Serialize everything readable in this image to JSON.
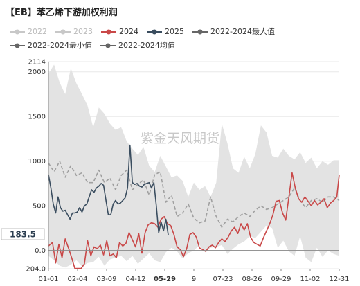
{
  "title": "【EB】苯乙烯下游加权利润",
  "watermark": "紫金天风期货",
  "colors": {
    "band": "#e3e3e3",
    "s2024": "#c94848",
    "s2025": "#3a4d5f",
    "avg": "#a0a0a0",
    "legend_off": "#c8c8c8",
    "legend_grey": "#666666",
    "grid": "#e8e8e8"
  },
  "legend": [
    {
      "label": "2022",
      "color": "#c8c8c8",
      "enabled": false
    },
    {
      "label": "2023",
      "color": "#c8c8c8",
      "enabled": false
    },
    {
      "label": "2024",
      "color": "#c94848",
      "enabled": true
    },
    {
      "label": "2025",
      "color": "#3a4d5f",
      "enabled": true
    },
    {
      "label": "2022-2024最大值",
      "color": "#666666",
      "enabled": true
    },
    {
      "label": "2022-2024最小值",
      "color": "#666666",
      "enabled": true
    },
    {
      "label": "2022-2024均值",
      "color": "#666666",
      "enabled": true
    }
  ],
  "chart_data": {
    "type": "line",
    "title": "【EB】苯乙烯下游加权利润",
    "x_ticks": [
      "01-01",
      "02-04",
      "03-09",
      "04-12",
      "05-29",
      "9",
      "07-23",
      "08-26",
      "09-29",
      "11-02",
      "12-31"
    ],
    "x_tick_highlight": "05-29",
    "x_range": [
      "01-01",
      "12-31"
    ],
    "y_ticks": [
      -204.0,
      0.0,
      500.0,
      1000,
      1500,
      2000,
      2114
    ],
    "ylim": [
      -204.0,
      2114
    ],
    "y_marker": 183.5,
    "grid": true,
    "series": [
      {
        "name": "2022-2024最大值",
        "x": [
          1,
          8,
          15,
          22,
          29,
          36,
          43,
          50,
          57,
          64,
          71,
          78,
          85,
          92,
          99,
          106,
          113,
          120,
          127,
          134,
          141,
          148,
          155,
          162,
          169,
          176,
          183,
          190,
          197,
          204,
          211,
          218,
          225,
          232,
          239,
          246,
          253,
          260,
          267,
          274,
          281,
          288,
          295,
          302,
          309,
          316,
          323,
          330,
          337,
          344,
          351,
          358,
          365
        ],
        "values": [
          1980,
          2080,
          1880,
          1750,
          2040,
          1870,
          1750,
          1620,
          1380,
          1600,
          1530,
          1420,
          1350,
          1380,
          1220,
          1140,
          1070,
          1160,
          950,
          880,
          1060,
          940,
          820,
          840,
          780,
          600,
          760,
          680,
          720,
          600,
          760,
          1420,
          1200,
          920,
          870,
          1050,
          920,
          1080,
          1400,
          1320,
          1060,
          1040,
          1140,
          1060,
          1020,
          1100,
          980,
          1040,
          920,
          1000,
          960,
          1010,
          1010
        ]
      },
      {
        "name": "2022-2024最小值",
        "x": [
          1,
          8,
          15,
          22,
          29,
          36,
          43,
          50,
          57,
          64,
          71,
          78,
          85,
          92,
          99,
          106,
          113,
          120,
          127,
          134,
          141,
          148,
          155,
          162,
          169,
          176,
          183,
          190,
          197,
          204,
          211,
          218,
          225,
          232,
          239,
          246,
          253,
          260,
          267,
          274,
          281,
          288,
          295,
          302,
          309,
          316,
          323,
          330,
          337,
          344,
          351,
          358,
          365
        ],
        "values": [
          -60,
          -110,
          -170,
          -190,
          -160,
          -110,
          -180,
          -140,
          -130,
          -70,
          -170,
          -100,
          -80,
          -60,
          -120,
          -60,
          -150,
          -90,
          -30,
          -110,
          -130,
          -20,
          30,
          -10,
          -90,
          -30,
          0,
          60,
          -20,
          30,
          40,
          60,
          -40,
          20,
          70,
          100,
          160,
          140,
          210,
          280,
          250,
          30,
          110,
          -10,
          -60,
          160,
          -80,
          -130,
          30,
          -70,
          0,
          -40,
          -60
        ]
      },
      {
        "name": "2024",
        "x": [
          1,
          6,
          10,
          14,
          18,
          22,
          26,
          30,
          34,
          38,
          42,
          46,
          50,
          54,
          58,
          62,
          66,
          70,
          74,
          78,
          82,
          86,
          90,
          94,
          98,
          102,
          106,
          110,
          114,
          118,
          122,
          126,
          130,
          134,
          138,
          142,
          146,
          150,
          154,
          158,
          162,
          166,
          170,
          174,
          178,
          182,
          186,
          190,
          194,
          198,
          202,
          206,
          210,
          214,
          218,
          222,
          226,
          230,
          234,
          238,
          242,
          246,
          250,
          254,
          258,
          262,
          266,
          270,
          274,
          278,
          282,
          286,
          290,
          294,
          298,
          302,
          306,
          310,
          314,
          318,
          322,
          326,
          330,
          334,
          338,
          342,
          346,
          350,
          354,
          358,
          362,
          365
        ],
        "values": [
          50,
          90,
          -140,
          70,
          -80,
          130,
          30,
          -80,
          -200,
          -200,
          -200,
          -150,
          110,
          -60,
          40,
          20,
          60,
          -50,
          110,
          -60,
          -40,
          -80,
          90,
          50,
          80,
          200,
          120,
          40,
          190,
          -30,
          200,
          290,
          310,
          300,
          260,
          350,
          380,
          300,
          280,
          180,
          40,
          10,
          -70,
          20,
          180,
          200,
          150,
          30,
          10,
          -10,
          40,
          60,
          30,
          90,
          130,
          100,
          150,
          220,
          260,
          190,
          300,
          230,
          300,
          150,
          90,
          70,
          50,
          140,
          220,
          300,
          400,
          550,
          560,
          420,
          340,
          600,
          870,
          700,
          580,
          540,
          600,
          550,
          500,
          560,
          510,
          540,
          580,
          480,
          530,
          560,
          600,
          850
        ]
      },
      {
        "name": "2025",
        "x": [
          1,
          4,
          7,
          10,
          13,
          16,
          19,
          22,
          25,
          28,
          31,
          34,
          37,
          40,
          43,
          46,
          49,
          52,
          55,
          58,
          61,
          64,
          67,
          70,
          73,
          76,
          79,
          82,
          85,
          88,
          91,
          94,
          97,
          100,
          103,
          106,
          109,
          112,
          115,
          118,
          121,
          124,
          127,
          130,
          133,
          136,
          139,
          142,
          145,
          148,
          151
        ],
        "values": [
          850,
          700,
          520,
          420,
          600,
          480,
          440,
          450,
          400,
          350,
          420,
          420,
          430,
          480,
          430,
          500,
          520,
          600,
          680,
          650,
          700,
          720,
          750,
          730,
          560,
          400,
          400,
          520,
          560,
          520,
          530,
          560,
          590,
          700,
          1180,
          760,
          740,
          750,
          720,
          710,
          740,
          750,
          760,
          700,
          760,
          500,
          200,
          320,
          220,
          350,
          170
        ]
      },
      {
        "name": "2022-2024均值",
        "x": [
          1,
          8,
          15,
          22,
          29,
          36,
          43,
          50,
          57,
          64,
          71,
          78,
          85,
          92,
          99,
          106,
          113,
          120,
          127,
          134,
          141,
          148,
          155,
          162,
          169,
          176,
          183,
          190,
          197,
          204,
          211,
          218,
          225,
          232,
          239,
          246,
          253,
          260,
          267,
          274,
          281,
          288,
          295,
          302,
          309,
          316,
          323,
          330,
          337,
          344,
          351,
          358,
          365
        ],
        "values": [
          980,
          880,
          1000,
          820,
          950,
          840,
          870,
          760,
          760,
          900,
          760,
          810,
          680,
          840,
          900,
          680,
          740,
          790,
          620,
          850,
          880,
          540,
          620,
          380,
          420,
          520,
          360,
          310,
          330,
          600,
          380,
          260,
          350,
          320,
          380,
          420,
          380,
          450,
          500,
          460,
          480,
          520,
          560,
          600,
          700,
          560,
          480,
          560,
          580,
          540,
          600,
          600,
          560
        ]
      }
    ]
  }
}
